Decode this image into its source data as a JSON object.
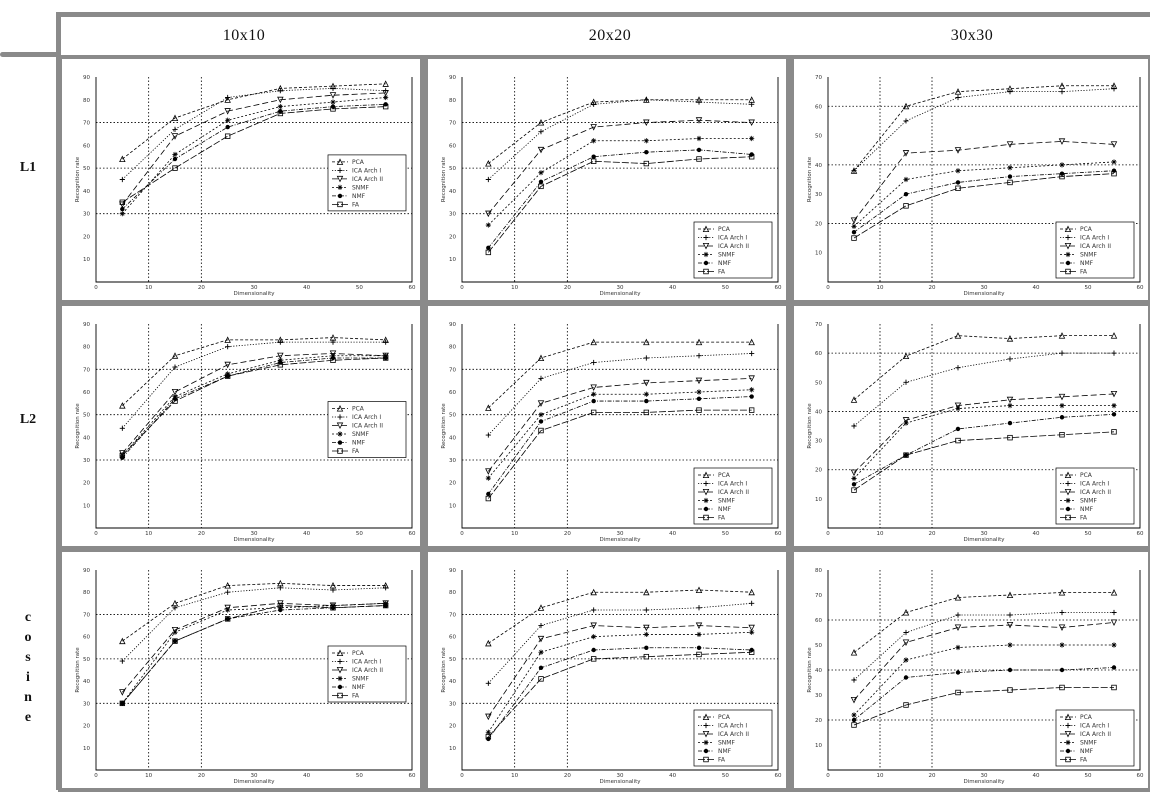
{
  "header": {
    "columns": [
      "10x10",
      "20x20",
      "30x30"
    ],
    "rows": [
      {
        "label_lines": [
          "L1"
        ]
      },
      {
        "label_lines": [
          "L2"
        ]
      },
      {
        "label_lines": [
          "c",
          "o",
          "s",
          "i",
          "n",
          "e"
        ]
      }
    ]
  },
  "chart_data": [
    {
      "type": "line",
      "panel": "10x10 / L1",
      "xlabel": "Dimensionality",
      "ylabel": "Recognition rate",
      "xlim": [
        0,
        60
      ],
      "ylim": [
        0,
        90
      ],
      "xticks": [
        "0",
        "10",
        "20",
        "30",
        "40",
        "50",
        "60"
      ],
      "yticks": [
        "10",
        "20",
        "30",
        "40",
        "50",
        "60",
        "70",
        "80",
        "90"
      ],
      "x": [
        5,
        15,
        25,
        35,
        45,
        55
      ],
      "legend": [
        "PCA",
        "ICA Arch I",
        "ICA Arch II",
        "SNMF",
        "NMF",
        "FA"
      ],
      "series": [
        {
          "name": "PCA",
          "values": [
            54,
            72,
            80,
            85,
            86,
            87
          ]
        },
        {
          "name": "ICA Arch I",
          "values": [
            45,
            67,
            81,
            84,
            85,
            84
          ]
        },
        {
          "name": "ICA Arch II",
          "values": [
            34,
            64,
            75,
            80,
            82,
            83
          ]
        },
        {
          "name": "SNMF",
          "values": [
            30,
            56,
            71,
            77,
            79,
            81
          ]
        },
        {
          "name": "NMF",
          "values": [
            32,
            54,
            68,
            75,
            77,
            78
          ]
        },
        {
          "name": "FA",
          "values": [
            35,
            50,
            64,
            74,
            76,
            77
          ]
        }
      ]
    },
    {
      "type": "line",
      "panel": "20x20 / L1",
      "xlabel": "Dimensionality",
      "ylabel": "Recognition rate",
      "xlim": [
        0,
        60
      ],
      "ylim": [
        0,
        90
      ],
      "xticks": [
        "0",
        "10",
        "20",
        "30",
        "40",
        "50",
        "60"
      ],
      "yticks": [
        "10",
        "20",
        "30",
        "40",
        "50",
        "60",
        "70",
        "80",
        "90"
      ],
      "x": [
        5,
        15,
        25,
        35,
        45,
        55
      ],
      "legend": [
        "PCA",
        "ICA Arch I",
        "ICA Arch II",
        "SNMF",
        "NMF",
        "FA"
      ],
      "series": [
        {
          "name": "PCA",
          "values": [
            52,
            70,
            79,
            80,
            80,
            80
          ]
        },
        {
          "name": "ICA Arch I",
          "values": [
            45,
            66,
            78,
            80,
            79,
            78
          ]
        },
        {
          "name": "ICA Arch II",
          "values": [
            30,
            58,
            68,
            70,
            71,
            70
          ]
        },
        {
          "name": "SNMF",
          "values": [
            25,
            48,
            62,
            62,
            63,
            63
          ]
        },
        {
          "name": "NMF",
          "values": [
            15,
            44,
            55,
            57,
            58,
            56
          ]
        },
        {
          "name": "FA",
          "values": [
            13,
            42,
            53,
            52,
            54,
            55
          ]
        }
      ]
    },
    {
      "type": "line",
      "panel": "30x30 / L1",
      "xlabel": "Dimensionality",
      "ylabel": "Recognition rate",
      "xlim": [
        0,
        60
      ],
      "ylim": [
        0,
        70
      ],
      "xticks": [
        "0",
        "10",
        "20",
        "30",
        "40",
        "50",
        "60"
      ],
      "yticks": [
        "10",
        "20",
        "30",
        "40",
        "50",
        "60",
        "70"
      ],
      "x": [
        5,
        15,
        25,
        35,
        45,
        55
      ],
      "legend": [
        "PCA",
        "ICA Arch I",
        "ICA Arch II",
        "SNMF",
        "NMF",
        "FA"
      ],
      "series": [
        {
          "name": "PCA",
          "values": [
            38,
            60,
            65,
            66,
            67,
            67
          ]
        },
        {
          "name": "ICA Arch I",
          "values": [
            38,
            55,
            63,
            65,
            65,
            66
          ]
        },
        {
          "name": "ICA Arch II",
          "values": [
            21,
            44,
            45,
            47,
            48,
            47
          ]
        },
        {
          "name": "SNMF",
          "values": [
            19,
            35,
            38,
            39,
            40,
            41
          ]
        },
        {
          "name": "NMF",
          "values": [
            17,
            30,
            34,
            36,
            37,
            38
          ]
        },
        {
          "name": "FA",
          "values": [
            15,
            26,
            32,
            34,
            36,
            37
          ]
        }
      ]
    },
    {
      "type": "line",
      "panel": "10x10 / L2",
      "xlabel": "Dimensionality",
      "ylabel": "Recognition rate",
      "xlim": [
        0,
        60
      ],
      "ylim": [
        0,
        90
      ],
      "xticks": [
        "0",
        "10",
        "20",
        "30",
        "40",
        "50",
        "60"
      ],
      "yticks": [
        "10",
        "20",
        "30",
        "40",
        "50",
        "60",
        "70",
        "80",
        "90"
      ],
      "x": [
        5,
        15,
        25,
        35,
        45,
        55
      ],
      "legend": [
        "PCA",
        "ICA Arch I",
        "ICA Arch II",
        "SNMF",
        "NMF",
        "FA"
      ],
      "series": [
        {
          "name": "PCA",
          "values": [
            54,
            76,
            83,
            83,
            84,
            83
          ]
        },
        {
          "name": "ICA Arch I",
          "values": [
            44,
            71,
            80,
            82,
            82,
            82
          ]
        },
        {
          "name": "ICA Arch II",
          "values": [
            33,
            60,
            72,
            76,
            77,
            76
          ]
        },
        {
          "name": "SNMF",
          "values": [
            32,
            58,
            68,
            74,
            76,
            76
          ]
        },
        {
          "name": "NMF",
          "values": [
            31,
            57,
            67,
            73,
            75,
            75
          ]
        },
        {
          "name": "FA",
          "values": [
            32,
            56,
            67,
            72,
            74,
            75
          ]
        }
      ]
    },
    {
      "type": "line",
      "panel": "20x20 / L2",
      "xlabel": "Dimensionality",
      "ylabel": "Recognition rate",
      "xlim": [
        0,
        60
      ],
      "ylim": [
        0,
        90
      ],
      "xticks": [
        "0",
        "10",
        "20",
        "30",
        "40",
        "50",
        "60"
      ],
      "yticks": [
        "10",
        "20",
        "30",
        "40",
        "50",
        "60",
        "70",
        "80",
        "90"
      ],
      "x": [
        5,
        15,
        25,
        35,
        45,
        55
      ],
      "legend": [
        "PCA",
        "ICA Arch I",
        "ICA Arch II",
        "SNMF",
        "NMF",
        "FA"
      ],
      "series": [
        {
          "name": "PCA",
          "values": [
            53,
            75,
            82,
            82,
            82,
            82
          ]
        },
        {
          "name": "ICA Arch I",
          "values": [
            41,
            66,
            73,
            75,
            76,
            77
          ]
        },
        {
          "name": "ICA Arch II",
          "values": [
            25,
            55,
            62,
            64,
            65,
            66
          ]
        },
        {
          "name": "SNMF",
          "values": [
            22,
            50,
            59,
            59,
            60,
            61
          ]
        },
        {
          "name": "NMF",
          "values": [
            15,
            47,
            56,
            56,
            57,
            58
          ]
        },
        {
          "name": "FA",
          "values": [
            13,
            43,
            51,
            51,
            52,
            52
          ]
        }
      ]
    },
    {
      "type": "line",
      "panel": "30x30 / L2",
      "xlabel": "Dimensionality",
      "ylabel": "Recognition rate",
      "xlim": [
        0,
        60
      ],
      "ylim": [
        0,
        70
      ],
      "xticks": [
        "0",
        "10",
        "20",
        "30",
        "40",
        "50",
        "60"
      ],
      "yticks": [
        "10",
        "20",
        "30",
        "40",
        "50",
        "60",
        "70"
      ],
      "x": [
        5,
        15,
        25,
        35,
        45,
        55
      ],
      "legend": [
        "PCA",
        "ICA Arch I",
        "ICA Arch II",
        "SNMF",
        "NMF",
        "FA"
      ],
      "series": [
        {
          "name": "PCA",
          "values": [
            44,
            59,
            66,
            65,
            66,
            66
          ]
        },
        {
          "name": "ICA Arch I",
          "values": [
            35,
            50,
            55,
            58,
            60,
            60
          ]
        },
        {
          "name": "ICA Arch II",
          "values": [
            19,
            37,
            42,
            44,
            45,
            46
          ]
        },
        {
          "name": "SNMF",
          "values": [
            17,
            36,
            41,
            42,
            42,
            42
          ]
        },
        {
          "name": "NMF",
          "values": [
            15,
            25,
            34,
            36,
            38,
            39
          ]
        },
        {
          "name": "FA",
          "values": [
            13,
            25,
            30,
            31,
            32,
            33
          ]
        }
      ]
    },
    {
      "type": "line",
      "panel": "10x10 / cosine",
      "xlabel": "Dimensionality",
      "ylabel": "Recognition rate",
      "xlim": [
        0,
        60
      ],
      "ylim": [
        0,
        90
      ],
      "xticks": [
        "0",
        "10",
        "20",
        "30",
        "40",
        "50",
        "60"
      ],
      "yticks": [
        "10",
        "20",
        "30",
        "40",
        "50",
        "60",
        "70",
        "80",
        "90"
      ],
      "x": [
        5,
        15,
        25,
        35,
        45,
        55
      ],
      "legend": [
        "PCA",
        "ICA Arch I",
        "ICA Arch II",
        "SNMF",
        "NMF",
        "FA"
      ],
      "series": [
        {
          "name": "PCA",
          "values": [
            58,
            75,
            83,
            84,
            83,
            83
          ]
        },
        {
          "name": "ICA Arch I",
          "values": [
            49,
            73,
            80,
            82,
            81,
            82
          ]
        },
        {
          "name": "ICA Arch II",
          "values": [
            35,
            63,
            73,
            75,
            74,
            75
          ]
        },
        {
          "name": "SNMF",
          "values": [
            30,
            62,
            72,
            73,
            74,
            75
          ]
        },
        {
          "name": "NMF",
          "values": [
            30,
            58,
            68,
            72,
            73,
            74
          ]
        },
        {
          "name": "FA",
          "values": [
            30,
            58,
            68,
            74,
            73,
            74
          ]
        }
      ]
    },
    {
      "type": "line",
      "panel": "20x20 / cosine",
      "xlabel": "Dimensionality",
      "ylabel": "Recognition rate",
      "xlim": [
        0,
        60
      ],
      "ylim": [
        0,
        90
      ],
      "xticks": [
        "0",
        "10",
        "20",
        "30",
        "40",
        "50",
        "60"
      ],
      "yticks": [
        "10",
        "20",
        "30",
        "40",
        "50",
        "60",
        "70",
        "80",
        "90"
      ],
      "x": [
        5,
        15,
        25,
        35,
        45,
        55
      ],
      "legend": [
        "PCA",
        "ICA Arch I",
        "ICA Arch II",
        "SNMF",
        "NMF",
        "FA"
      ],
      "series": [
        {
          "name": "PCA",
          "values": [
            57,
            73,
            80,
            80,
            81,
            80
          ]
        },
        {
          "name": "ICA Arch I",
          "values": [
            39,
            65,
            72,
            72,
            73,
            75
          ]
        },
        {
          "name": "ICA Arch II",
          "values": [
            24,
            59,
            65,
            64,
            65,
            64
          ]
        },
        {
          "name": "SNMF",
          "values": [
            17,
            53,
            60,
            61,
            61,
            62
          ]
        },
        {
          "name": "NMF",
          "values": [
            14,
            46,
            54,
            55,
            55,
            54
          ]
        },
        {
          "name": "FA",
          "values": [
            15,
            41,
            50,
            51,
            52,
            53
          ]
        }
      ]
    },
    {
      "type": "line",
      "panel": "30x30 / cosine",
      "xlabel": "Dimensionality",
      "ylabel": "Recognition rate",
      "xlim": [
        0,
        60
      ],
      "ylim": [
        0,
        80
      ],
      "xticks": [
        "0",
        "10",
        "20",
        "30",
        "40",
        "50",
        "60"
      ],
      "yticks": [
        "10",
        "20",
        "30",
        "40",
        "50",
        "60",
        "70",
        "80"
      ],
      "x": [
        5,
        15,
        25,
        35,
        45,
        55
      ],
      "legend": [
        "PCA",
        "ICA Arch I",
        "ICA Arch II",
        "SNMF",
        "NMF",
        "FA"
      ],
      "series": [
        {
          "name": "PCA",
          "values": [
            47,
            63,
            69,
            70,
            71,
            71
          ]
        },
        {
          "name": "ICA Arch I",
          "values": [
            36,
            55,
            62,
            62,
            63,
            63
          ]
        },
        {
          "name": "ICA Arch II",
          "values": [
            28,
            51,
            57,
            58,
            57,
            59
          ]
        },
        {
          "name": "SNMF",
          "values": [
            22,
            44,
            49,
            50,
            50,
            50
          ]
        },
        {
          "name": "NMF",
          "values": [
            20,
            37,
            39,
            40,
            40,
            41
          ]
        },
        {
          "name": "FA",
          "values": [
            18,
            26,
            31,
            32,
            33,
            33
          ]
        }
      ]
    }
  ]
}
